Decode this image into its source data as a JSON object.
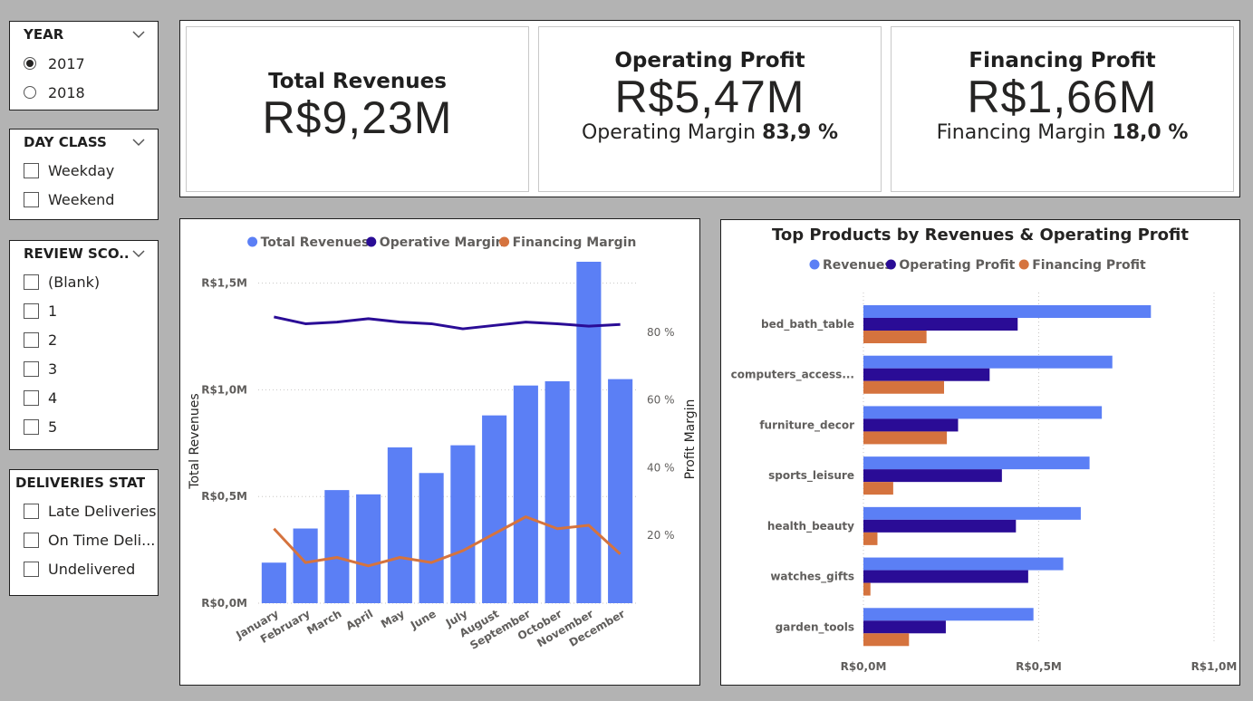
{
  "slicers": {
    "year": {
      "title": "YEAR",
      "options": [
        {
          "label": "2017",
          "selected": true
        },
        {
          "label": "2018",
          "selected": false
        }
      ]
    },
    "day_class": {
      "title": "DAY CLASS",
      "options": [
        "Weekday",
        "Weekend"
      ]
    },
    "review_score": {
      "title": "REVIEW SCO...",
      "options": [
        "(Blank)",
        "1",
        "2",
        "3",
        "4",
        "5"
      ]
    },
    "deliveries_status": {
      "title": "DELIVERIES STATUS",
      "options": [
        "Late Deliveries",
        "On Time Deli...",
        "Undelivered"
      ]
    }
  },
  "kpis": {
    "total_revenues": {
      "title": "Total Revenues",
      "value": "R$9,23M"
    },
    "operating_profit": {
      "title": "Operating Profit",
      "value": "R$5,47M",
      "sub_label": "Operating Margin",
      "sub_value": "83,9 %"
    },
    "financing_profit": {
      "title": "Financing Profit",
      "value": "R$1,66M",
      "sub_label": "Financing Margin",
      "sub_value": "18,0 %"
    }
  },
  "colors": {
    "revenues": "#5b7ff5",
    "operating": "#2a0c96",
    "financing": "#d5733e"
  },
  "chart_data": [
    {
      "type": "bar",
      "title": "",
      "legend": [
        "Total Revenues",
        "Operative Margin",
        "Financing Margin"
      ],
      "legend_position": "top-center",
      "ylabel": "Total Revenues",
      "y2label": "Profit Margin",
      "ylim": [
        0,
        1500000
      ],
      "y2lim": [
        0,
        100
      ],
      "yticks": [
        0,
        500000,
        1000000,
        1500000
      ],
      "ytick_labels": [
        "R$0,0M",
        "R$0,5M",
        "R$1,0M",
        "R$1,5M"
      ],
      "y2ticks": [
        20,
        40,
        60,
        80
      ],
      "y2tick_labels": [
        "20 %",
        "40 %",
        "60 %",
        "80 %"
      ],
      "grid": true,
      "categories": [
        "January",
        "February",
        "March",
        "April",
        "May",
        "June",
        "July",
        "August",
        "September",
        "October",
        "November",
        "December"
      ],
      "series": [
        {
          "name": "Total Revenues",
          "kind": "bar",
          "values": [
            190000,
            350000,
            530000,
            510000,
            730000,
            610000,
            740000,
            880000,
            1020000,
            1040000,
            1600000,
            1050000
          ]
        },
        {
          "name": "Operative Margin",
          "kind": "line",
          "axis": "y2",
          "values": [
            84.5,
            82.5,
            83,
            84,
            83,
            82.5,
            81,
            82,
            83,
            82.5,
            81.8,
            82.3
          ]
        },
        {
          "name": "Financing Margin",
          "kind": "line",
          "axis": "y2",
          "values": [
            22,
            12,
            13.5,
            11,
            13.5,
            12,
            15.5,
            20.5,
            25.5,
            22,
            23,
            14.5
          ]
        }
      ]
    },
    {
      "type": "bar",
      "orientation": "horizontal",
      "title": "Top Products by Revenues & Operating Profit",
      "legend": [
        "Revenues",
        "Operating Profit",
        "Financing Profit"
      ],
      "legend_position": "top-center",
      "xlim": [
        0,
        1000000
      ],
      "xticks": [
        0,
        500000,
        1000000
      ],
      "xtick_labels": [
        "R$0,0M",
        "R$0,5M",
        "R$1,0M"
      ],
      "grid": true,
      "categories": [
        "bed_bath_table",
        "computers_access...",
        "furniture_decor",
        "sports_leisure",
        "health_beauty",
        "watches_gifts",
        "garden_tools"
      ],
      "series": [
        {
          "name": "Revenues",
          "values": [
            820000,
            710000,
            680000,
            645000,
            620000,
            570000,
            485000
          ]
        },
        {
          "name": "Operating Profit",
          "values": [
            440000,
            360000,
            270000,
            395000,
            435000,
            470000,
            235000
          ]
        },
        {
          "name": "Financing Profit",
          "values": [
            180000,
            230000,
            238000,
            85000,
            40000,
            20000,
            130000
          ]
        }
      ]
    }
  ]
}
